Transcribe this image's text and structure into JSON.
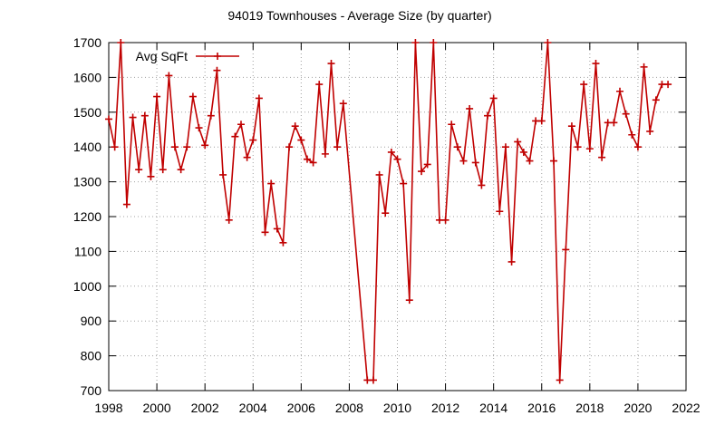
{
  "chart_data": {
    "type": "line",
    "title": "94019 Townhouses - Average Size (by quarter)",
    "xlabel": "",
    "ylabel": "",
    "xlim": [
      1998,
      2022
    ],
    "ylim": [
      700,
      1700
    ],
    "grid": true,
    "legend_position": "top-left",
    "x_ticks": [
      "1998",
      "2000",
      "2002",
      "2004",
      "2006",
      "2008",
      "2010",
      "2012",
      "2014",
      "2016",
      "2018",
      "2020",
      "2022"
    ],
    "y_ticks": [
      "700",
      "800",
      "900",
      "1000",
      "1100",
      "1200",
      "1300",
      "1400",
      "1500",
      "1600",
      "1700"
    ],
    "series": [
      {
        "name": "Avg SqFt",
        "color": "#c00000",
        "x": [
          1998.0,
          1998.25,
          1998.5,
          1998.75,
          1999.0,
          1999.25,
          1999.5,
          1999.75,
          2000.0,
          2000.25,
          2000.5,
          2000.75,
          2001.0,
          2001.25,
          2001.5,
          2001.75,
          2002.0,
          2002.25,
          2002.5,
          2002.75,
          2003.0,
          2003.25,
          2003.5,
          2003.75,
          2004.0,
          2004.25,
          2004.5,
          2004.75,
          2005.0,
          2005.25,
          2005.5,
          2005.75,
          2006.0,
          2006.25,
          2006.5,
          2006.75,
          2007.0,
          2007.25,
          2007.5,
          2007.75,
          2008.75,
          2009.0,
          2009.25,
          2009.5,
          2009.75,
          2010.0,
          2010.25,
          2010.5,
          2010.75,
          2011.0,
          2011.25,
          2011.5,
          2011.75,
          2012.0,
          2012.25,
          2012.5,
          2012.75,
          2013.0,
          2013.25,
          2013.5,
          2013.75,
          2014.0,
          2014.25,
          2014.5,
          2014.75,
          2015.0,
          2015.25,
          2015.5,
          2015.75,
          2016.0,
          2016.25,
          2016.5,
          2016.75,
          2017.0,
          2017.25,
          2017.5,
          2017.75,
          2018.0,
          2018.25,
          2018.5,
          2018.75,
          2019.0,
          2019.25,
          2019.5,
          2019.75,
          2020.0,
          2020.25,
          2020.5,
          2020.75,
          2021.0,
          2021.25
        ],
        "values": [
          1480,
          1400,
          1700,
          1235,
          1485,
          1335,
          1490,
          1315,
          1545,
          1335,
          1605,
          1400,
          1335,
          1400,
          1545,
          1455,
          1405,
          1490,
          1620,
          1320,
          1190,
          1430,
          1465,
          1370,
          1420,
          1540,
          1155,
          1295,
          1165,
          1125,
          1400,
          1460,
          1420,
          1365,
          1355,
          1580,
          1380,
          1640,
          1400,
          1525,
          730,
          730,
          1320,
          1210,
          1385,
          1365,
          1295,
          960,
          1700,
          1330,
          1350,
          1700,
          1190,
          1190,
          1465,
          1400,
          1360,
          1510,
          1355,
          1290,
          1490,
          1540,
          1215,
          1400,
          1070,
          1415,
          1385,
          1360,
          1475,
          1475,
          1700,
          1360,
          730,
          1105,
          1460,
          1400,
          1580,
          1395,
          1640,
          1370,
          1470,
          1470,
          1560,
          1495,
          1435,
          1400,
          1630,
          1445,
          1535,
          1580,
          1580
        ]
      }
    ]
  }
}
